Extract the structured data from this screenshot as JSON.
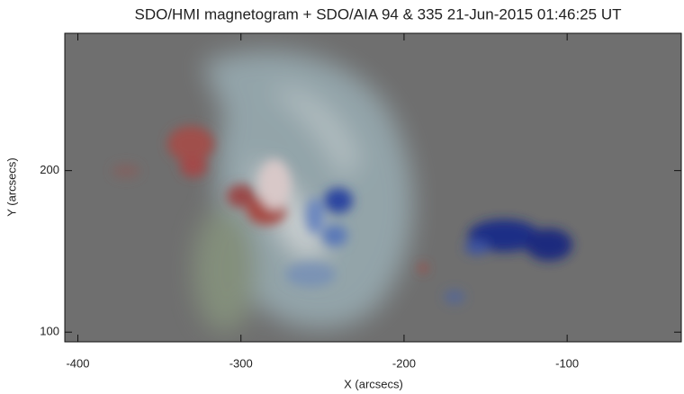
{
  "chart_data": {
    "type": "image",
    "title": "SDO/HMI magnetogram + SDO/AIA 94 & 335 21-Jun-2015 01:46:25 UT",
    "xlabel": "X (arcsecs)",
    "ylabel": "Y (arcsecs)",
    "xlim": [
      -408,
      -30
    ],
    "ylim": [
      94,
      285
    ],
    "xticks": [
      -400,
      -300,
      -200,
      -100
    ],
    "yticks": [
      100,
      200
    ]
  }
}
